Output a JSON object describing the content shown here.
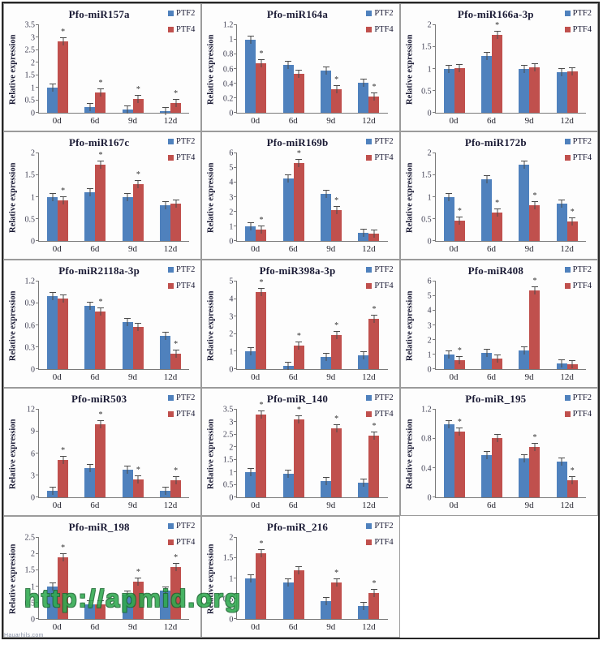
{
  "figure": {
    "watermark_text": "http://apmid.org",
    "corner_watermark_text": "Hauarhils.com",
    "legend_labels": [
      "PTF2",
      "PTF4"
    ],
    "colors": {
      "PTF2": "#4f81bd",
      "PTF4": "#c0504d"
    },
    "ylabel": "Relative expression"
  },
  "chart_data": [
    {
      "type": "bar",
      "title": "Pfo-miR157a",
      "ylabel": "Relative expression",
      "categories": [
        "0d",
        "6d",
        "9d",
        "12d"
      ],
      "ylim": [
        0,
        3.5
      ],
      "yticks": [
        "0",
        "0.5",
        "1",
        "1.5",
        "2",
        "2.5",
        "3",
        "3.5"
      ],
      "grid": false,
      "legend_position": "top-right",
      "series": [
        {
          "name": "PTF2",
          "values": [
            1.0,
            0.22,
            0.13,
            0.08
          ]
        },
        {
          "name": "PTF4",
          "values": [
            2.85,
            0.82,
            0.55,
            0.4
          ],
          "significance": [
            true,
            true,
            true,
            true
          ]
        }
      ]
    },
    {
      "type": "bar",
      "title": "Pfo-miR164a",
      "ylabel": "Relative expression",
      "categories": [
        "0d",
        "6d",
        "9d",
        "12d"
      ],
      "ylim": [
        0,
        1.2
      ],
      "yticks": [
        "0",
        "0.2",
        "0.4",
        "0.6",
        "0.8",
        "1",
        "1.2"
      ],
      "grid": false,
      "legend_position": "top-right",
      "series": [
        {
          "name": "PTF2",
          "values": [
            1.0,
            0.66,
            0.58,
            0.41
          ]
        },
        {
          "name": "PTF4",
          "values": [
            0.68,
            0.53,
            0.32,
            0.22
          ],
          "significance": [
            true,
            false,
            true,
            true
          ]
        }
      ]
    },
    {
      "type": "bar",
      "title": "Pfo-miR166a-3p",
      "ylabel": "Relative expression",
      "categories": [
        "0d",
        "6d",
        "9d",
        "12d"
      ],
      "ylim": [
        0,
        2
      ],
      "yticks": [
        "0",
        "0.5",
        "1",
        "1.5",
        "2"
      ],
      "grid": false,
      "legend_position": "top-right",
      "series": [
        {
          "name": "PTF2",
          "values": [
            1.0,
            1.3,
            1.0,
            0.93
          ]
        },
        {
          "name": "PTF4",
          "values": [
            1.01,
            1.78,
            1.03,
            0.95
          ],
          "significance": [
            false,
            true,
            false,
            false
          ]
        }
      ]
    },
    {
      "type": "bar",
      "title": "Pfo-miR167c",
      "ylabel": "Relative expression",
      "categories": [
        "0d",
        "6d",
        "9d",
        "12d"
      ],
      "ylim": [
        0,
        2
      ],
      "yticks": [
        "0",
        "0.5",
        "1",
        "1.5",
        "2"
      ],
      "grid": false,
      "legend_position": "top-right",
      "series": [
        {
          "name": "PTF2",
          "values": [
            1.0,
            1.12,
            1.0,
            0.82
          ]
        },
        {
          "name": "PTF4",
          "values": [
            0.93,
            1.75,
            1.3,
            0.86
          ],
          "significance": [
            true,
            true,
            true,
            false
          ]
        }
      ]
    },
    {
      "type": "bar",
      "title": "Pfo-miR169b",
      "ylabel": "Relative expression",
      "categories": [
        "0d",
        "6d",
        "9d",
        "12d"
      ],
      "ylim": [
        0,
        6
      ],
      "yticks": [
        "0",
        "1",
        "2",
        "3",
        "4",
        "5",
        "6"
      ],
      "grid": false,
      "legend_position": "top-right",
      "series": [
        {
          "name": "PTF2",
          "values": [
            1.0,
            4.3,
            3.2,
            0.55
          ]
        },
        {
          "name": "PTF4",
          "values": [
            0.8,
            5.35,
            2.1,
            0.5
          ],
          "significance": [
            true,
            true,
            true,
            false
          ]
        }
      ]
    },
    {
      "type": "bar",
      "title": "Pfo-miR172b",
      "ylabel": "Relative expression",
      "categories": [
        "0d",
        "6d",
        "9d",
        "12d"
      ],
      "ylim": [
        0,
        2
      ],
      "yticks": [
        "0",
        "0.5",
        "1",
        "1.5",
        "2"
      ],
      "grid": false,
      "legend_position": "top-right",
      "series": [
        {
          "name": "PTF2",
          "values": [
            1.0,
            1.4,
            1.75,
            0.85
          ]
        },
        {
          "name": "PTF4",
          "values": [
            0.47,
            0.65,
            0.82,
            0.45
          ],
          "significance": [
            true,
            true,
            true,
            true
          ]
        }
      ]
    },
    {
      "type": "bar",
      "title": "Pfo-miR2118a-3p",
      "ylabel": "Relative expression",
      "categories": [
        "0d",
        "6d",
        "9d",
        "12d"
      ],
      "ylim": [
        0,
        1.2
      ],
      "yticks": [
        "0",
        "0.3",
        "0.6",
        "0.9",
        "1.2"
      ],
      "grid": false,
      "legend_position": "top-right",
      "series": [
        {
          "name": "PTF2",
          "values": [
            1.0,
            0.87,
            0.65,
            0.46
          ]
        },
        {
          "name": "PTF4",
          "values": [
            0.97,
            0.79,
            0.58,
            0.21
          ],
          "significance": [
            false,
            true,
            false,
            true
          ]
        }
      ]
    },
    {
      "type": "bar",
      "title": "Pfo-miR398a-3p",
      "ylabel": "Relative expression",
      "categories": [
        "0d",
        "6d",
        "9d",
        "12d"
      ],
      "ylim": [
        0,
        5
      ],
      "yticks": [
        "0",
        "1",
        "2",
        "3",
        "4",
        "5"
      ],
      "grid": false,
      "legend_position": "top-right",
      "series": [
        {
          "name": "PTF2",
          "values": [
            1.0,
            0.2,
            0.7,
            0.8
          ]
        },
        {
          "name": "PTF4",
          "values": [
            4.4,
            1.35,
            1.95,
            2.85
          ],
          "significance": [
            true,
            true,
            true,
            true
          ]
        }
      ]
    },
    {
      "type": "bar",
      "title": "Pfo-miR408",
      "ylabel": "Relative expression",
      "categories": [
        "0d",
        "6d",
        "9d",
        "12d"
      ],
      "ylim": [
        0,
        6
      ],
      "yticks": [
        "0",
        "1",
        "2",
        "3",
        "4",
        "5",
        "6"
      ],
      "grid": false,
      "legend_position": "top-right",
      "series": [
        {
          "name": "PTF2",
          "values": [
            1.0,
            1.1,
            1.3,
            0.4
          ]
        },
        {
          "name": "PTF4",
          "values": [
            0.62,
            0.7,
            5.4,
            0.33
          ],
          "significance": [
            true,
            false,
            true,
            false
          ]
        }
      ]
    },
    {
      "type": "bar",
      "title": "Pfo-miR503",
      "ylabel": "Relative expression",
      "categories": [
        "0d",
        "6d",
        "9d",
        "12d"
      ],
      "ylim": [
        0,
        12
      ],
      "yticks": [
        "0",
        "3",
        "6",
        "9",
        "12"
      ],
      "grid": false,
      "legend_position": "top-right",
      "series": [
        {
          "name": "PTF2",
          "values": [
            0.9,
            4.0,
            3.8,
            0.9
          ]
        },
        {
          "name": "PTF4",
          "values": [
            5.1,
            10.0,
            2.5,
            2.3
          ],
          "significance": [
            true,
            true,
            true,
            true
          ]
        }
      ]
    },
    {
      "type": "bar",
      "title": "Pfo-miR_140",
      "ylabel": "Relative expression",
      "categories": [
        "0d",
        "6d",
        "9d",
        "12d"
      ],
      "ylim": [
        0,
        3.5
      ],
      "yticks": [
        "0",
        "0.5",
        "1",
        "1.5",
        "2",
        "2.5",
        "3",
        "3.5"
      ],
      "grid": false,
      "legend_position": "top-right",
      "series": [
        {
          "name": "PTF2",
          "values": [
            1.0,
            0.93,
            0.65,
            0.6
          ]
        },
        {
          "name": "PTF4",
          "values": [
            3.3,
            3.1,
            2.75,
            2.45
          ],
          "significance": [
            true,
            true,
            true,
            true
          ]
        }
      ]
    },
    {
      "type": "bar",
      "title": "Pfo-miR_195",
      "ylabel": "Relative expression",
      "categories": [
        "0d",
        "6d",
        "9d",
        "12d"
      ],
      "ylim": [
        0,
        1.2
      ],
      "yticks": [
        "0",
        "0.4",
        "0.8",
        "1.2"
      ],
      "grid": false,
      "legend_position": "top-right",
      "series": [
        {
          "name": "PTF2",
          "values": [
            1.0,
            0.58,
            0.53,
            0.49
          ]
        },
        {
          "name": "PTF4",
          "values": [
            0.9,
            0.81,
            0.69,
            0.23
          ],
          "significance": [
            true,
            false,
            true,
            true
          ]
        }
      ]
    },
    {
      "type": "bar",
      "title": "Pfo-miR_198",
      "ylabel": "Relative expression",
      "categories": [
        "0d",
        "6d",
        "9d",
        "12d"
      ],
      "ylim": [
        0,
        2.5
      ],
      "yticks": [
        "0",
        "0.5",
        "1",
        "1.5",
        "2",
        "2.5"
      ],
      "grid": false,
      "legend_position": "top-right",
      "series": [
        {
          "name": "PTF2",
          "values": [
            1.0,
            0.45,
            0.75,
            0.88
          ]
        },
        {
          "name": "PTF4",
          "values": [
            1.9,
            0.45,
            1.15,
            1.6
          ],
          "significance": [
            true,
            false,
            true,
            true
          ]
        }
      ]
    },
    {
      "type": "bar",
      "title": "Pfo-miR_216",
      "ylabel": "Relative expression",
      "categories": [
        "0d",
        "6d",
        "9d",
        "12d"
      ],
      "ylim": [
        0,
        2
      ],
      "yticks": [
        "0",
        "0.5",
        "1",
        "1.5",
        "2"
      ],
      "grid": false,
      "legend_position": "top-right",
      "series": [
        {
          "name": "PTF2",
          "values": [
            1.0,
            0.9,
            0.45,
            0.33
          ]
        },
        {
          "name": "PTF4",
          "values": [
            1.62,
            1.2,
            0.9,
            0.65
          ],
          "significance": [
            true,
            false,
            true,
            true
          ]
        }
      ]
    }
  ]
}
